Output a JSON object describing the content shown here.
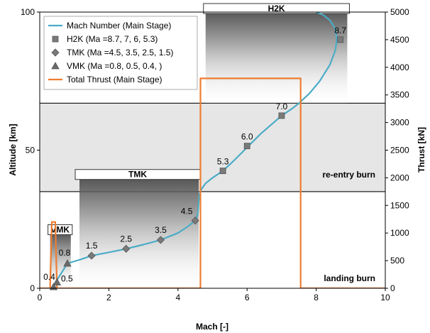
{
  "chart_data": {
    "type": "line",
    "xlabel": "Mach [-]",
    "ylabel": "Altitude [km]",
    "y2label": "Thrust [kN]",
    "xlim": [
      0,
      10
    ],
    "ylim": [
      0,
      100
    ],
    "y2lim": [
      0,
      5000
    ],
    "x_ticks": [
      "0",
      "2",
      "4",
      "6",
      "8",
      "10"
    ],
    "y_ticks": [
      "0",
      "50",
      "100"
    ],
    "y2_ticks": [
      "0",
      "500",
      "1000",
      "1500",
      "2000",
      "2500",
      "3000",
      "3500",
      "4000",
      "4500",
      "5000"
    ],
    "legend_position": "top-left",
    "series": [
      {
        "name": "Mach Number (Main Stage)",
        "color": "#4bacc6",
        "axis": "left",
        "x": [
          0.35,
          0.45,
          0.8,
          1.2,
          1.5,
          2.0,
          2.5,
          3.0,
          3.5,
          4.0,
          4.3,
          4.5,
          4.58,
          4.6,
          4.62,
          4.66,
          4.8,
          5.0,
          5.3,
          5.6,
          6.0,
          6.4,
          7.0,
          7.3,
          7.5,
          7.8,
          8.1,
          8.4,
          8.55,
          8.6,
          8.55,
          8.4,
          8.2,
          8.0
        ],
        "y": [
          0,
          2,
          9,
          10.5,
          11.8,
          13,
          14.3,
          15.8,
          17.5,
          20,
          22.5,
          24.5,
          27,
          31,
          34,
          35.5,
          38,
          40,
          42.5,
          46,
          51,
          56,
          62.5,
          65,
          67,
          70.5,
          75,
          81,
          86,
          90,
          94,
          97,
          99,
          100
        ]
      },
      {
        "name": "H2K (Ma =8.7, 7, 6, 5.3)",
        "color": "#808080",
        "marker": "square",
        "x": [
          8.7,
          7.0,
          6.0,
          5.3
        ],
        "y": [
          90,
          62.5,
          51.5,
          42.5
        ],
        "labels": [
          "8.7",
          "7.0",
          "6.0",
          "5.3"
        ]
      },
      {
        "name": "TMK (Ma =4.5, 3.5, 2.5, 1.5)",
        "color": "#808080",
        "marker": "diamond",
        "x": [
          4.5,
          3.5,
          2.5,
          1.5
        ],
        "y": [
          24.5,
          17.5,
          14.3,
          11.8
        ],
        "labels": [
          "4.5",
          "3.5",
          "2.5",
          "1.5"
        ]
      },
      {
        "name": "VMK (Ma =0.8, 0.5, 0.4, )",
        "color": "#808080",
        "marker": "triangle",
        "x": [
          0.8,
          0.5,
          0.4
        ],
        "y": [
          9,
          2.2,
          0.5
        ],
        "labels": [
          "0.8",
          "0.5",
          "0.4"
        ]
      },
      {
        "name": "Total Thrust (Main Stage)",
        "color": "#ed7d31",
        "axis": "right",
        "x": [
          0,
          0.3,
          0.35,
          0.45,
          0.5,
          4.6,
          4.65,
          4.65,
          7.5,
          7.55,
          7.55,
          10
        ],
        "y": [
          0,
          0,
          1200,
          1200,
          0,
          0,
          0,
          3800,
          3800,
          3800,
          0,
          0
        ]
      }
    ],
    "regions": [
      {
        "label": "VMK",
        "x": [
          0.3,
          0.9
        ],
        "y": [
          0,
          23
        ]
      },
      {
        "label": "TMK",
        "x": [
          1.15,
          4.6
        ],
        "y": [
          0,
          43
        ]
      },
      {
        "label": "H2K",
        "x": [
          4.8,
          8.9
        ],
        "y": [
          67,
          104
        ]
      }
    ],
    "bands": [
      {
        "label": "re-entry burn",
        "y": [
          35,
          67
        ]
      },
      {
        "label": "landing burn",
        "y": [
          0,
          35
        ]
      }
    ]
  }
}
